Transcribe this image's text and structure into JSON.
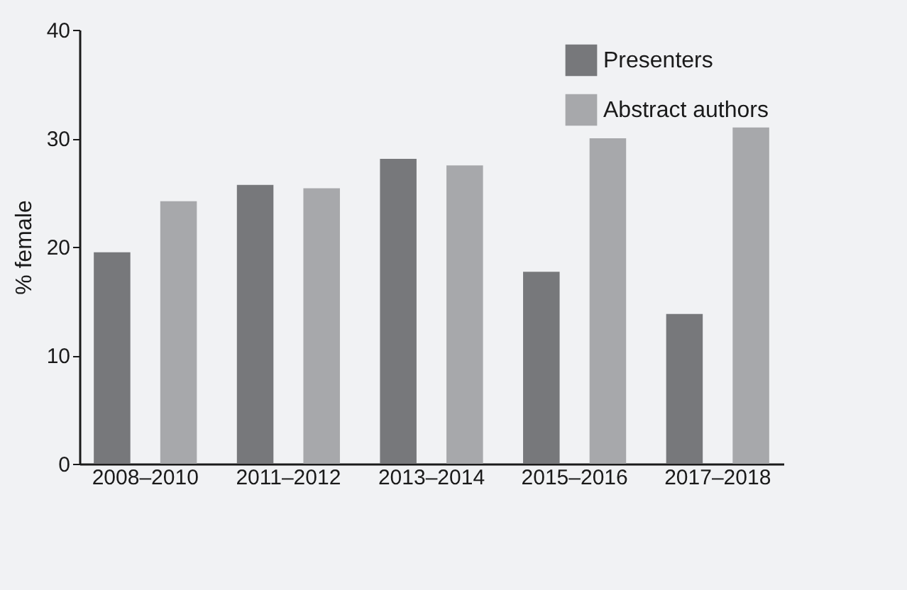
{
  "chart_data": {
    "type": "bar",
    "ylabel": "% female",
    "categories": [
      "2008–2010",
      "2011–2012",
      "2013–2014",
      "2015–2016",
      "2017–2018"
    ],
    "series": [
      {
        "name": "Presenters",
        "color": "#77787b",
        "values": [
          19.5,
          25.7,
          28.1,
          17.7,
          13.8
        ]
      },
      {
        "name": "Abstract authors",
        "color": "#a7a8ab",
        "values": [
          24.2,
          25.4,
          27.5,
          30.0,
          31.0
        ]
      }
    ],
    "ylim": [
      0,
      40
    ],
    "yticks": [
      0,
      10,
      20,
      30,
      40
    ],
    "grid": false,
    "legend": "top right"
  }
}
